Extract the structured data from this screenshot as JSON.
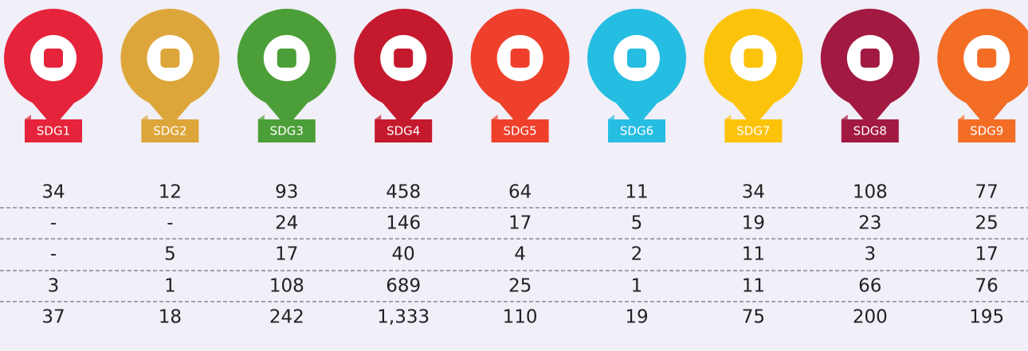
{
  "columns": [
    {
      "label": "SDG1",
      "color": "#e5243b"
    },
    {
      "label": "SDG2",
      "color": "#dda63a"
    },
    {
      "label": "SDG3",
      "color": "#4c9f38"
    },
    {
      "label": "SDG4",
      "color": "#c5192d"
    },
    {
      "label": "SDG5",
      "color": "#ef402b"
    },
    {
      "label": "SDG6",
      "color": "#26bde2"
    },
    {
      "label": "SDG7",
      "color": "#fcc30b"
    },
    {
      "label": "SDG8",
      "color": "#a21942"
    },
    {
      "label": "SDG9",
      "color": "#f36d25"
    }
  ],
  "table": {
    "rows": [
      [
        "34",
        "12",
        "93",
        "458",
        "64",
        "11",
        "34",
        "108",
        "77"
      ],
      [
        "-",
        "-",
        "24",
        "146",
        "17",
        "5",
        "19",
        "23",
        "25"
      ],
      [
        "-",
        "5",
        "17",
        "40",
        "4",
        "2",
        "11",
        "3",
        "17"
      ],
      [
        "3",
        "1",
        "108",
        "689",
        "25",
        "1",
        "11",
        "66",
        "76"
      ],
      [
        "37",
        "18",
        "242",
        "1,333",
        "110",
        "19",
        "75",
        "200",
        "195"
      ]
    ]
  }
}
